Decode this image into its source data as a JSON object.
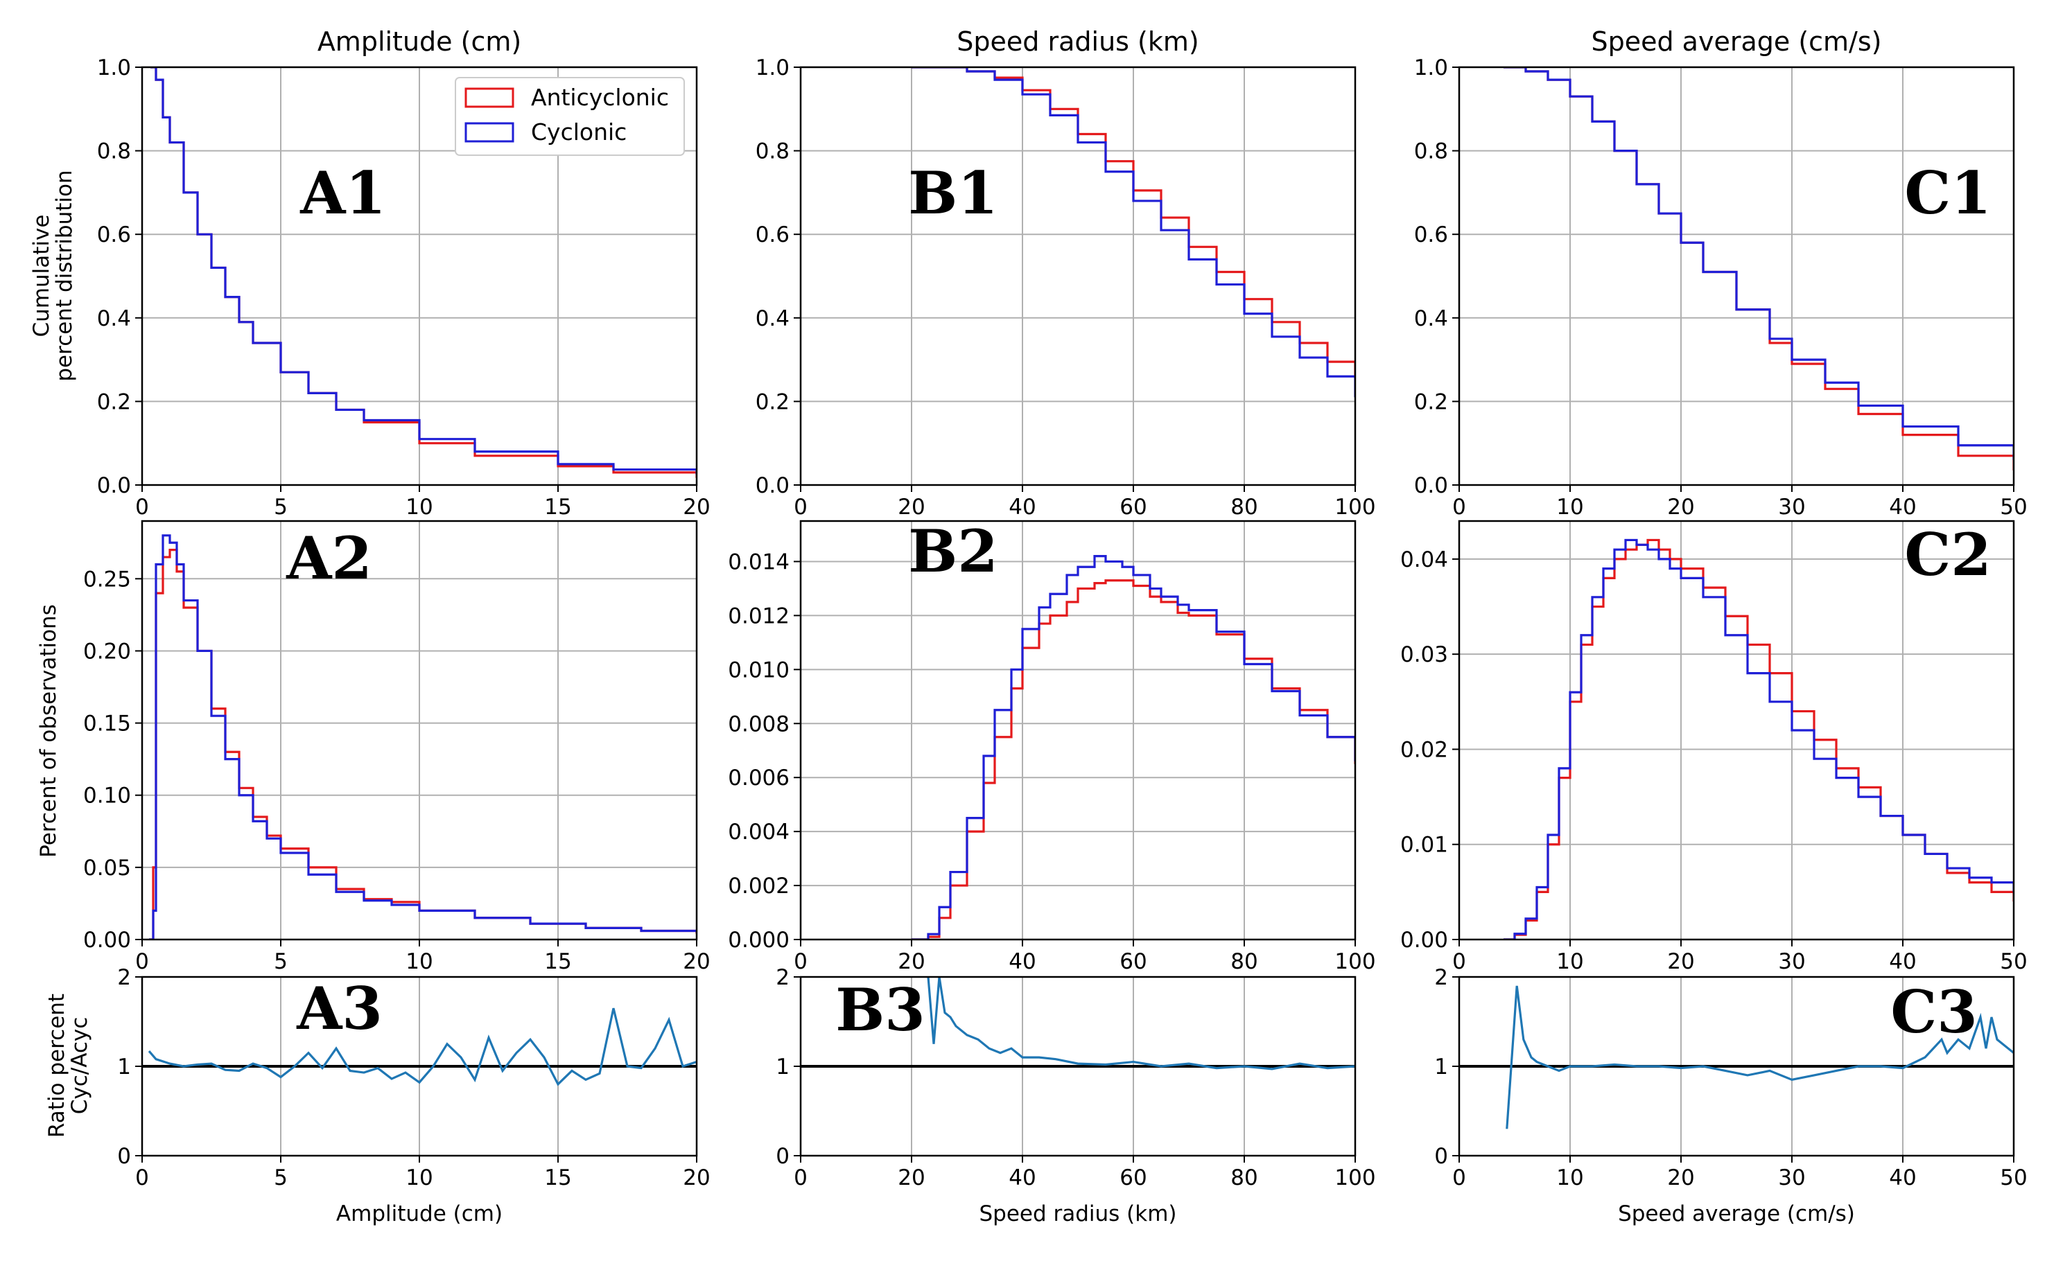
{
  "figure": {
    "column_titles": [
      "Amplitude (cm)",
      "Speed radius (km)",
      "Speed average (cm/s)"
    ],
    "x_labels": [
      "Amplitude (cm)",
      "Speed radius (km)",
      "Speed average (cm/s)"
    ],
    "y_labels": {
      "row1": [
        "Cumulative",
        "percent distribution"
      ],
      "row2": "Percent of observations",
      "row3": [
        "Ratio percent",
        "Cyc/Acyc"
      ]
    },
    "legend": {
      "placement": "top-right of panel A1",
      "entries": [
        "Anticyclonic",
        "Cyclonic"
      ]
    },
    "colors": {
      "anticyclonic": "#e41a1c",
      "cyclonic": "#1f1fd6",
      "ratio": "#1f77b4",
      "grid": "#b0b0b0",
      "reference_line": "#000000"
    }
  },
  "chart_data": [
    {
      "id": "A1",
      "type": "line",
      "step": true,
      "title": "Amplitude (cm)",
      "panel_label": "A1",
      "xlabel": "",
      "ylabel": "Cumulative percent distribution",
      "xlim": [
        0,
        20
      ],
      "ylim": [
        0,
        1
      ],
      "xticks": [
        "0",
        "5",
        "10",
        "15",
        "20"
      ],
      "yticks": [
        "0.0",
        "0.2",
        "0.4",
        "0.6",
        "0.8",
        "1.0"
      ],
      "grid": true,
      "legend": "top-right",
      "x": [
        0.3,
        0.5,
        0.75,
        1,
        1.5,
        2,
        2.5,
        3,
        3.5,
        4,
        5,
        6,
        7,
        8,
        10,
        12,
        15,
        17,
        20
      ],
      "series": [
        {
          "name": "Anticyclonic",
          "color": "#e41a1c",
          "values": [
            1.0,
            0.97,
            0.88,
            0.82,
            0.7,
            0.6,
            0.52,
            0.45,
            0.39,
            0.34,
            0.27,
            0.22,
            0.18,
            0.15,
            0.1,
            0.07,
            0.045,
            0.03,
            0.017
          ]
        },
        {
          "name": "Cyclonic",
          "color": "#1f1fd6",
          "values": [
            1.0,
            0.97,
            0.88,
            0.82,
            0.7,
            0.6,
            0.52,
            0.45,
            0.39,
            0.34,
            0.27,
            0.22,
            0.18,
            0.155,
            0.11,
            0.08,
            0.05,
            0.037,
            0.025
          ]
        }
      ]
    },
    {
      "id": "B1",
      "type": "line",
      "step": true,
      "title": "Speed radius (km)",
      "panel_label": "B1",
      "xlabel": "",
      "ylabel": "",
      "xlim": [
        0,
        100
      ],
      "ylim": [
        0,
        1
      ],
      "xticks": [
        "0",
        "20",
        "40",
        "60",
        "80",
        "100"
      ],
      "yticks": [
        "0.0",
        "0.2",
        "0.4",
        "0.6",
        "0.8",
        "1.0"
      ],
      "grid": true,
      "x": [
        20,
        25,
        30,
        35,
        40,
        45,
        50,
        55,
        60,
        65,
        70,
        75,
        80,
        85,
        90,
        95,
        100
      ],
      "series": [
        {
          "name": "Anticyclonic",
          "color": "#e41a1c",
          "values": [
            1.0,
            1.0,
            0.99,
            0.975,
            0.945,
            0.9,
            0.84,
            0.775,
            0.705,
            0.64,
            0.57,
            0.51,
            0.445,
            0.39,
            0.34,
            0.295,
            0.255
          ]
        },
        {
          "name": "Cyclonic",
          "color": "#1f1fd6",
          "values": [
            1.0,
            1.0,
            0.99,
            0.97,
            0.935,
            0.885,
            0.82,
            0.75,
            0.68,
            0.61,
            0.54,
            0.48,
            0.41,
            0.355,
            0.305,
            0.26,
            0.21
          ]
        }
      ]
    },
    {
      "id": "C1",
      "type": "line",
      "step": true,
      "title": "Speed average (cm/s)",
      "panel_label": "C1",
      "xlabel": "",
      "ylabel": "",
      "xlim": [
        0,
        50
      ],
      "ylim": [
        0,
        1
      ],
      "xticks": [
        "0",
        "10",
        "20",
        "30",
        "40",
        "50"
      ],
      "yticks": [
        "0.0",
        "0.2",
        "0.4",
        "0.6",
        "0.8",
        "1.0"
      ],
      "grid": true,
      "x": [
        4,
        6,
        8,
        10,
        12,
        14,
        16,
        18,
        20,
        22,
        25,
        28,
        30,
        33,
        36,
        40,
        45,
        50
      ],
      "series": [
        {
          "name": "Anticyclonic",
          "color": "#e41a1c",
          "values": [
            1.0,
            0.99,
            0.97,
            0.93,
            0.87,
            0.8,
            0.72,
            0.65,
            0.58,
            0.51,
            0.42,
            0.34,
            0.29,
            0.23,
            0.17,
            0.12,
            0.07,
            0.035
          ]
        },
        {
          "name": "Cyclonic",
          "color": "#1f1fd6",
          "values": [
            1.0,
            0.99,
            0.97,
            0.93,
            0.87,
            0.8,
            0.72,
            0.65,
            0.58,
            0.51,
            0.42,
            0.35,
            0.3,
            0.245,
            0.19,
            0.14,
            0.095,
            0.06
          ]
        }
      ]
    },
    {
      "id": "A2",
      "type": "line",
      "step": true,
      "panel_label": "A2",
      "xlabel": "",
      "ylabel": "Percent of observations",
      "xlim": [
        0,
        20
      ],
      "ylim": [
        0,
        0.29
      ],
      "xticks": [
        "0",
        "5",
        "10",
        "15",
        "20"
      ],
      "yticks": [
        "0.00",
        "0.05",
        "0.10",
        "0.15",
        "0.20",
        "0.25"
      ],
      "ytick_values": [
        0,
        0.05,
        0.1,
        0.15,
        0.2,
        0.25
      ],
      "grid": true,
      "x": [
        0.25,
        0.4,
        0.5,
        0.75,
        1,
        1.25,
        1.5,
        2,
        2.5,
        3,
        3.5,
        4,
        4.5,
        5,
        6,
        7,
        8,
        9,
        10,
        12,
        14,
        16,
        18,
        20
      ],
      "series": [
        {
          "name": "Anticyclonic",
          "color": "#e41a1c",
          "values": [
            0,
            0.05,
            0.24,
            0.265,
            0.27,
            0.255,
            0.23,
            0.2,
            0.16,
            0.13,
            0.105,
            0.085,
            0.072,
            0.063,
            0.05,
            0.035,
            0.028,
            0.026,
            0.02,
            0.015,
            0.011,
            0.008,
            0.006,
            0.004
          ]
        },
        {
          "name": "Cyclonic",
          "color": "#1f1fd6",
          "values": [
            0,
            0.02,
            0.26,
            0.28,
            0.275,
            0.26,
            0.235,
            0.2,
            0.155,
            0.125,
            0.1,
            0.082,
            0.07,
            0.06,
            0.045,
            0.033,
            0.027,
            0.024,
            0.02,
            0.015,
            0.011,
            0.008,
            0.006,
            0.005
          ]
        }
      ]
    },
    {
      "id": "B2",
      "type": "line",
      "step": true,
      "panel_label": "B2",
      "xlabel": "",
      "ylabel": "",
      "xlim": [
        0,
        100
      ],
      "ylim": [
        0,
        0.0155
      ],
      "xticks": [
        "0",
        "20",
        "40",
        "60",
        "80",
        "100"
      ],
      "yticks": [
        "0.000",
        "0.002",
        "0.004",
        "0.006",
        "0.008",
        "0.010",
        "0.012",
        "0.014"
      ],
      "ytick_values": [
        0,
        0.002,
        0.004,
        0.006,
        0.008,
        0.01,
        0.012,
        0.014
      ],
      "grid": true,
      "x": [
        20,
        23,
        25,
        27,
        30,
        33,
        35,
        38,
        40,
        43,
        45,
        48,
        50,
        53,
        55,
        58,
        60,
        63,
        65,
        68,
        70,
        75,
        80,
        85,
        90,
        95,
        100
      ],
      "series": [
        {
          "name": "Anticyclonic",
          "color": "#e41a1c",
          "values": [
            0,
            0.0001,
            0.0008,
            0.002,
            0.004,
            0.0058,
            0.0075,
            0.0093,
            0.0108,
            0.0117,
            0.012,
            0.0125,
            0.013,
            0.0132,
            0.0133,
            0.0133,
            0.0131,
            0.0127,
            0.0125,
            0.0121,
            0.012,
            0.0113,
            0.0104,
            0.0093,
            0.0085,
            0.0075,
            0.0065
          ]
        },
        {
          "name": "Cyclonic",
          "color": "#1f1fd6",
          "values": [
            0,
            0.0002,
            0.0012,
            0.0025,
            0.0045,
            0.0068,
            0.0085,
            0.01,
            0.0115,
            0.0123,
            0.0128,
            0.0135,
            0.0138,
            0.0142,
            0.014,
            0.0138,
            0.0135,
            0.013,
            0.0127,
            0.0124,
            0.0122,
            0.0114,
            0.0102,
            0.0092,
            0.0083,
            0.0075,
            0.0066
          ]
        }
      ]
    },
    {
      "id": "C2",
      "type": "line",
      "step": true,
      "panel_label": "C2",
      "xlabel": "",
      "ylabel": "",
      "xlim": [
        0,
        50
      ],
      "ylim": [
        0,
        0.044
      ],
      "xticks": [
        "0",
        "10",
        "20",
        "30",
        "40",
        "50"
      ],
      "yticks": [
        "0.00",
        "0.01",
        "0.02",
        "0.03",
        "0.04"
      ],
      "ytick_values": [
        0,
        0.01,
        0.02,
        0.03,
        0.04
      ],
      "grid": true,
      "x": [
        4,
        5,
        6,
        7,
        8,
        9,
        10,
        11,
        12,
        13,
        14,
        15,
        16,
        17,
        18,
        19,
        20,
        22,
        24,
        26,
        28,
        30,
        32,
        34,
        36,
        38,
        40,
        42,
        44,
        46,
        48,
        50
      ],
      "series": [
        {
          "name": "Anticyclonic",
          "color": "#e41a1c",
          "values": [
            0,
            0.0005,
            0.002,
            0.005,
            0.01,
            0.017,
            0.025,
            0.031,
            0.035,
            0.038,
            0.04,
            0.041,
            0.0415,
            0.042,
            0.041,
            0.04,
            0.039,
            0.037,
            0.034,
            0.031,
            0.028,
            0.024,
            0.021,
            0.018,
            0.016,
            0.013,
            0.011,
            0.009,
            0.007,
            0.006,
            0.005,
            0.004
          ]
        },
        {
          "name": "Cyclonic",
          "color": "#1f1fd6",
          "values": [
            0,
            0.0006,
            0.0022,
            0.0055,
            0.011,
            0.018,
            0.026,
            0.032,
            0.036,
            0.039,
            0.041,
            0.042,
            0.0415,
            0.041,
            0.04,
            0.039,
            0.038,
            0.036,
            0.032,
            0.028,
            0.025,
            0.022,
            0.019,
            0.017,
            0.015,
            0.013,
            0.011,
            0.009,
            0.0075,
            0.0065,
            0.006,
            0.005
          ]
        }
      ]
    },
    {
      "id": "A3",
      "type": "line",
      "panel_label": "A3",
      "xlabel": "Amplitude (cm)",
      "ylabel": "Ratio percent Cyc/Acyc",
      "xlim": [
        0,
        20
      ],
      "ylim": [
        0,
        2
      ],
      "xticks": [
        "0",
        "5",
        "10",
        "15",
        "20"
      ],
      "yticks": [
        "0",
        "1",
        "2"
      ],
      "grid": true,
      "reference_line": 1,
      "x": [
        0.25,
        0.5,
        1,
        1.5,
        2,
        2.5,
        3,
        3.5,
        4,
        4.5,
        5,
        5.5,
        6,
        6.5,
        7,
        7.5,
        8,
        8.5,
        9,
        9.5,
        10,
        10.5,
        11,
        11.5,
        12,
        12.5,
        13,
        13.5,
        14,
        14.5,
        15,
        15.5,
        16,
        16.5,
        17,
        17.5,
        18,
        18.5,
        19,
        19.5,
        20
      ],
      "series": [
        {
          "name": "Cyc/Acyc",
          "color": "#1f77b4",
          "values": [
            1.17,
            1.08,
            1.03,
            1.0,
            1.02,
            1.03,
            0.96,
            0.95,
            1.03,
            0.98,
            0.88,
            1.0,
            1.15,
            0.98,
            1.2,
            0.95,
            0.93,
            0.98,
            0.86,
            0.93,
            0.82,
            1.0,
            1.25,
            1.1,
            0.85,
            1.32,
            0.95,
            1.15,
            1.3,
            1.1,
            0.8,
            0.95,
            0.85,
            0.92,
            1.65,
            1.0,
            0.98,
            1.2,
            1.52,
            1.0,
            1.05
          ]
        }
      ]
    },
    {
      "id": "B3",
      "type": "line",
      "panel_label": "B3",
      "xlabel": "Speed radius (km)",
      "ylabel": "",
      "xlim": [
        0,
        100
      ],
      "ylim": [
        0,
        2
      ],
      "xticks": [
        "0",
        "20",
        "40",
        "60",
        "80",
        "100"
      ],
      "yticks": [
        "0",
        "1",
        "2"
      ],
      "grid": true,
      "reference_line": 1,
      "x": [
        23,
        24,
        25,
        26,
        27,
        28,
        30,
        32,
        34,
        36,
        38,
        40,
        43,
        46,
        50,
        55,
        60,
        65,
        70,
        75,
        80,
        85,
        90,
        95,
        100
      ],
      "series": [
        {
          "name": "Cyc/Acyc",
          "color": "#1f77b4",
          "values": [
            2.0,
            1.25,
            2.0,
            1.6,
            1.55,
            1.45,
            1.35,
            1.3,
            1.2,
            1.15,
            1.2,
            1.1,
            1.1,
            1.08,
            1.03,
            1.02,
            1.05,
            1.0,
            1.03,
            0.98,
            1.0,
            0.97,
            1.03,
            0.98,
            1.0
          ]
        }
      ]
    },
    {
      "id": "C3",
      "type": "line",
      "panel_label": "C3",
      "xlabel": "Speed average (cm/s)",
      "ylabel": "",
      "xlim": [
        0,
        50
      ],
      "ylim": [
        0,
        2
      ],
      "xticks": [
        "0",
        "10",
        "20",
        "30",
        "40",
        "50"
      ],
      "yticks": [
        "0",
        "1",
        "2"
      ],
      "grid": true,
      "reference_line": 1,
      "x": [
        4.3,
        5.2,
        5.8,
        6.5,
        7,
        8,
        9,
        10,
        12,
        14,
        16,
        18,
        20,
        22,
        24,
        26,
        28,
        30,
        32,
        34,
        36,
        38,
        40,
        42,
        43.5,
        44,
        45,
        46,
        47,
        47.5,
        48,
        48.5,
        49,
        50
      ],
      "series": [
        {
          "name": "Cyc/Acyc",
          "color": "#1f77b4",
          "values": [
            0.3,
            1.9,
            1.3,
            1.1,
            1.05,
            1.0,
            0.95,
            1.0,
            1.0,
            1.02,
            1.0,
            1.0,
            0.98,
            1.0,
            0.95,
            0.9,
            0.95,
            0.85,
            0.9,
            0.95,
            1.0,
            1.0,
            0.98,
            1.1,
            1.3,
            1.15,
            1.3,
            1.2,
            1.55,
            1.2,
            1.55,
            1.3,
            1.25,
            1.15
          ]
        }
      ]
    }
  ]
}
